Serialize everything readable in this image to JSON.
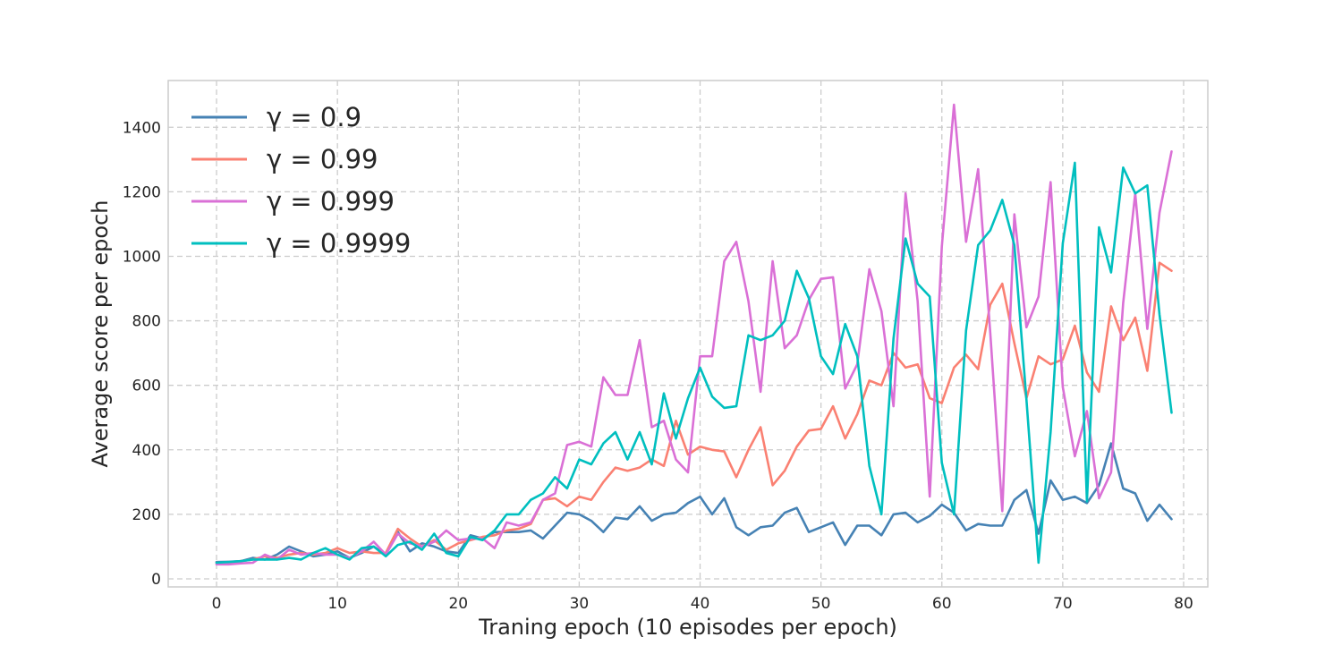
{
  "chart_data": {
    "type": "line",
    "title": "",
    "xlabel": "Traning epoch (10 episodes per epoch)",
    "ylabel": "Average score per epoch",
    "xlim": [
      -4,
      82
    ],
    "ylim": [
      -25,
      1545
    ],
    "xticks": [
      0,
      10,
      20,
      30,
      40,
      50,
      60,
      70,
      80
    ],
    "yticks": [
      0,
      200,
      400,
      600,
      800,
      1000,
      1200,
      1400
    ],
    "grid": true,
    "grid_style": "dashed",
    "legend_position": "top-left",
    "x": [
      0,
      1,
      2,
      3,
      4,
      5,
      6,
      7,
      8,
      9,
      10,
      11,
      12,
      13,
      14,
      15,
      16,
      17,
      18,
      19,
      20,
      21,
      22,
      23,
      24,
      25,
      26,
      27,
      28,
      29,
      30,
      31,
      32,
      33,
      34,
      35,
      36,
      37,
      38,
      39,
      40,
      41,
      42,
      43,
      44,
      45,
      46,
      47,
      48,
      49,
      50,
      51,
      52,
      53,
      54,
      55,
      56,
      57,
      58,
      59,
      60,
      61,
      62,
      63,
      64,
      65,
      66,
      67,
      68,
      69,
      70,
      71,
      72,
      73,
      74,
      75,
      76,
      77,
      78,
      79
    ],
    "series": [
      {
        "name": "γ = 0.9",
        "color": "#4682b4",
        "values": [
          52,
          53,
          55,
          65,
          60,
          75,
          100,
          85,
          70,
          75,
          85,
          65,
          80,
          100,
          75,
          145,
          85,
          110,
          100,
          85,
          80,
          135,
          125,
          145,
          145,
          145,
          150,
          125,
          165,
          205,
          200,
          180,
          145,
          190,
          185,
          225,
          180,
          200,
          205,
          235,
          255,
          200,
          250,
          160,
          135,
          160,
          165,
          205,
          220,
          145,
          160,
          175,
          105,
          165,
          165,
          135,
          200,
          205,
          175,
          195,
          230,
          205,
          150,
          170,
          165,
          165,
          245,
          275,
          140,
          305,
          245,
          255,
          235,
          290,
          420,
          280,
          265,
          180,
          230,
          185
        ]
      },
      {
        "name": "γ = 0.99",
        "color": "#fa8072",
        "values": [
          50,
          50,
          55,
          60,
          70,
          65,
          75,
          80,
          75,
          80,
          95,
          80,
          85,
          80,
          80,
          155,
          125,
          100,
          120,
          90,
          110,
          120,
          130,
          135,
          150,
          155,
          170,
          245,
          250,
          225,
          255,
          245,
          300,
          345,
          335,
          345,
          370,
          350,
          490,
          385,
          410,
          400,
          395,
          315,
          400,
          470,
          290,
          335,
          410,
          460,
          465,
          535,
          435,
          510,
          615,
          600,
          700,
          655,
          665,
          560,
          545,
          655,
          695,
          650,
          850,
          915,
          730,
          560,
          690,
          665,
          680,
          785,
          640,
          580,
          845,
          740,
          810,
          645,
          980,
          955
        ]
      },
      {
        "name": "γ = 0.999",
        "color": "#da70d6",
        "values": [
          45,
          45,
          48,
          50,
          75,
          60,
          90,
          75,
          80,
          75,
          75,
          65,
          85,
          115,
          75,
          140,
          110,
          100,
          115,
          150,
          120,
          125,
          125,
          95,
          175,
          165,
          175,
          245,
          265,
          415,
          425,
          410,
          625,
          570,
          570,
          740,
          470,
          490,
          370,
          330,
          690,
          690,
          985,
          1045,
          860,
          580,
          985,
          715,
          755,
          865,
          930,
          935,
          590,
          665,
          960,
          830,
          535,
          1195,
          860,
          255,
          1030,
          1470,
          1045,
          1270,
          765,
          210,
          1130,
          780,
          875,
          1230,
          595,
          380,
          520,
          250,
          330,
          855,
          1195,
          775,
          1135,
          1325
        ]
      },
      {
        "name": "γ = 0.9999",
        "color": "#00bfbf",
        "values": [
          50,
          52,
          55,
          60,
          60,
          60,
          65,
          60,
          80,
          95,
          75,
          60,
          95,
          100,
          70,
          105,
          115,
          90,
          140,
          80,
          70,
          130,
          120,
          150,
          200,
          200,
          245,
          265,
          315,
          280,
          370,
          355,
          420,
          455,
          370,
          455,
          355,
          575,
          435,
          560,
          655,
          565,
          530,
          535,
          755,
          740,
          755,
          800,
          955,
          870,
          690,
          635,
          790,
          690,
          350,
          200,
          745,
          1055,
          915,
          875,
          360,
          200,
          770,
          1035,
          1080,
          1175,
          1035,
          555,
          50,
          455,
          1040,
          1290,
          240,
          1090,
          950,
          1275,
          1195,
          1220,
          820,
          515
        ]
      }
    ]
  }
}
